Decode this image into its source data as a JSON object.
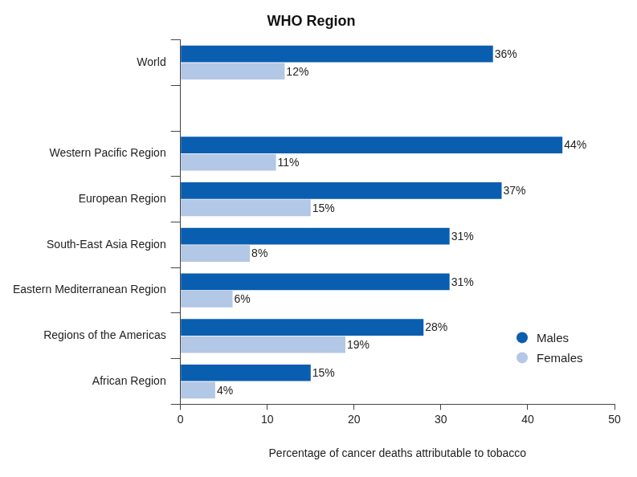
{
  "chart_data": {
    "type": "bar",
    "orientation": "horizontal",
    "title": "WHO Region",
    "x_label": "Percentage of cancer deaths attributable to tobacco",
    "categories": [
      "World",
      null,
      "Western Pacific Region",
      "European Region",
      "South-East Asia Region",
      "Eastern Mediterranean Region",
      "Regions of the Americas",
      "African Region"
    ],
    "series": [
      {
        "name": "Males",
        "color": "#0a5eb0",
        "values": [
          36,
          null,
          44,
          37,
          31,
          31,
          28,
          15
        ],
        "value_labels": [
          "36%",
          null,
          "44%",
          "37%",
          "31%",
          "31%",
          "28%",
          "15%"
        ]
      },
      {
        "name": "Females",
        "color": "#b3c7e6",
        "values": [
          12,
          null,
          11,
          15,
          8,
          6,
          19,
          4
        ],
        "value_labels": [
          "12%",
          null,
          "11%",
          "15%",
          "8%",
          "6%",
          "19%",
          "4%"
        ]
      }
    ],
    "xlim": [
      0,
      50
    ],
    "xticks": [
      0,
      10,
      20,
      30,
      40,
      50
    ],
    "grid": false,
    "legend": "lower right",
    "data_labels": true
  }
}
